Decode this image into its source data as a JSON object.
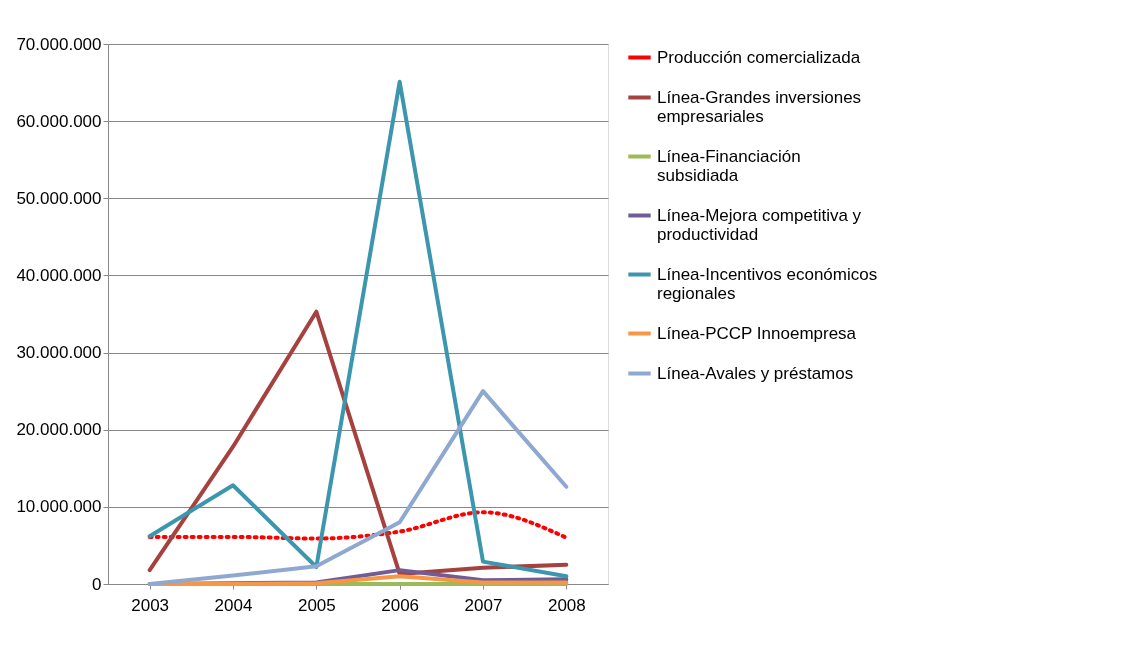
{
  "chart_data": {
    "type": "line",
    "categories": [
      "2003",
      "2004",
      "2005",
      "2006",
      "2007",
      "2008"
    ],
    "ylim": [
      0,
      70000000
    ],
    "yticks": [
      {
        "value": 0,
        "label": "0"
      },
      {
        "value": 10000000,
        "label": "10.000.000"
      },
      {
        "value": 20000000,
        "label": "20.000.000"
      },
      {
        "value": 30000000,
        "label": "30.000.000"
      },
      {
        "value": 40000000,
        "label": "40.000.000"
      },
      {
        "value": 50000000,
        "label": "50.000.000"
      },
      {
        "value": 60000000,
        "label": "60.000.000"
      },
      {
        "value": 70000000,
        "label": "70.000.000"
      }
    ],
    "grid": "y",
    "legend": "right",
    "marker": "none",
    "series": [
      {
        "name": "Producción comercializada",
        "color": "#ff0000",
        "line_style": "dotted",
        "values": [
          6100000,
          6100000,
          5900000,
          6800000,
          9300000,
          6000000
        ]
      },
      {
        "name": "Línea-Grandes inversiones empresariales",
        "color": "#a5413f",
        "values": [
          1800000,
          17800000,
          35300000,
          1300000,
          2100000,
          2500000
        ]
      },
      {
        "name": "Línea-Financiación subsidiada",
        "color": "#9bbb59",
        "values": [
          0,
          0,
          0,
          0,
          0,
          0
        ]
      },
      {
        "name": "Línea-Mejora competitiva y productividad",
        "color": "#705c96",
        "values": [
          0,
          100000,
          200000,
          1800000,
          500000,
          600000
        ]
      },
      {
        "name": "Línea-Incentivos económicos regionales",
        "color": "#3c97ae",
        "values": [
          6200000,
          12800000,
          2200000,
          65100000,
          2900000,
          1000000
        ]
      },
      {
        "name": "Línea-PCCP Innoempresa",
        "color": "#f79646",
        "values": [
          0,
          0,
          100000,
          1000000,
          200000,
          200000
        ]
      },
      {
        "name": "Línea-Avales y préstamos",
        "color": "#8fa8d0",
        "values": [
          0,
          1100000,
          2300000,
          8000000,
          25000000,
          12600000
        ]
      }
    ]
  }
}
